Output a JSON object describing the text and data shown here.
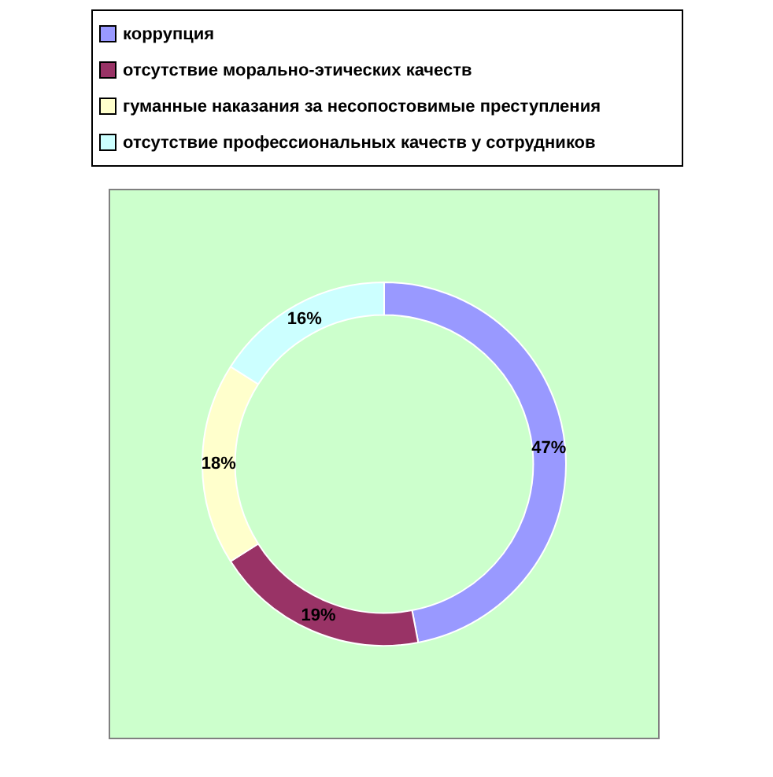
{
  "chart_data": {
    "type": "donut",
    "categories": [
      "коррупция",
      "отсутствие морально-этических качеств",
      "гуманные наказания за несопостовимые преступления",
      "отсутствие профессиональных качеств у сотрудников"
    ],
    "values": [
      47,
      19,
      18,
      16
    ],
    "colors": [
      "#9999ff",
      "#993366",
      "#ffffcc",
      "#ccffff"
    ],
    "value_labels": [
      "47%",
      "19%",
      "18%",
      "16%"
    ],
    "legend": "top"
  }
}
